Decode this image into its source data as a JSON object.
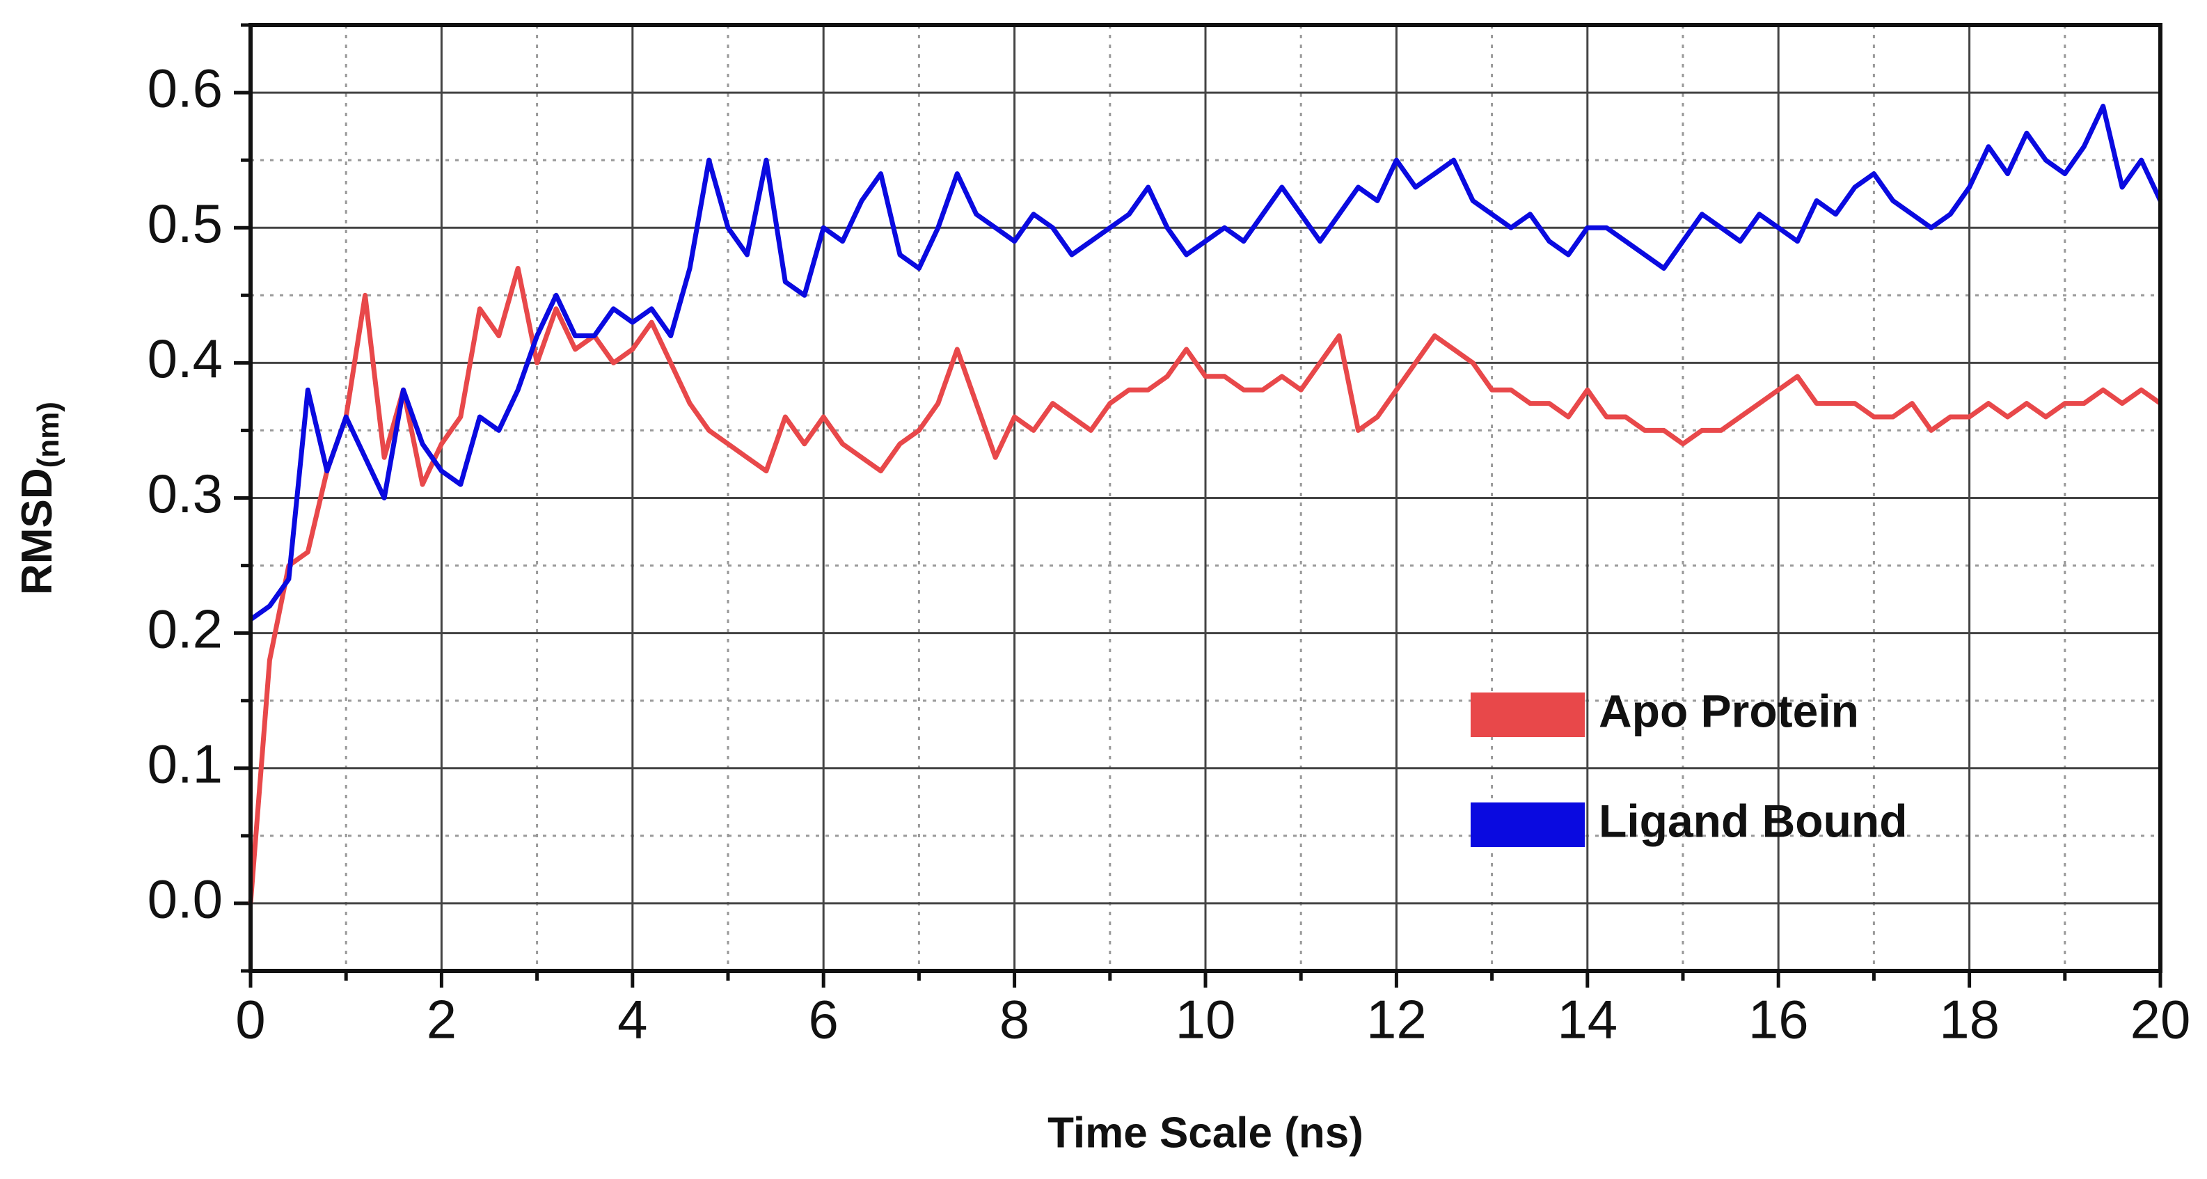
{
  "chart_data": {
    "type": "line",
    "x_label": "Time Scale (ns)",
    "y_label": "RMSD",
    "y_label_sub": "(nm)",
    "x": [
      0,
      0.2,
      0.4,
      0.6,
      0.8,
      1,
      1.2,
      1.4,
      1.6,
      1.8,
      2,
      2.2,
      2.4,
      2.6,
      2.8,
      3,
      3.2,
      3.4,
      3.6,
      3.8,
      4,
      4.2,
      4.4,
      4.6,
      4.8,
      5,
      5.2,
      5.4,
      5.6,
      5.8,
      6,
      6.2,
      6.4,
      6.6,
      6.8,
      7,
      7.2,
      7.4,
      7.6,
      7.8,
      8,
      8.2,
      8.4,
      8.6,
      8.8,
      9,
      9.2,
      9.4,
      9.6,
      9.8,
      10,
      10.2,
      10.4,
      10.6,
      10.8,
      11,
      11.2,
      11.4,
      11.6,
      11.8,
      12,
      12.2,
      12.4,
      12.6,
      12.8,
      13,
      13.2,
      13.4,
      13.6,
      13.8,
      14,
      14.2,
      14.4,
      14.6,
      14.8,
      15,
      15.2,
      15.4,
      15.6,
      15.8,
      16,
      16.2,
      16.4,
      16.6,
      16.8,
      17,
      17.2,
      17.4,
      17.6,
      17.8,
      18,
      18.2,
      18.4,
      18.6,
      18.8,
      19,
      19.2,
      19.4,
      19.6,
      19.8,
      20
    ],
    "series": [
      {
        "name": "Apo Protein",
        "color": "#e8484a",
        "values": [
          0.0,
          0.18,
          0.25,
          0.26,
          0.32,
          0.36,
          0.45,
          0.33,
          0.38,
          0.31,
          0.34,
          0.36,
          0.44,
          0.42,
          0.47,
          0.4,
          0.44,
          0.41,
          0.42,
          0.4,
          0.41,
          0.43,
          0.4,
          0.37,
          0.35,
          0.34,
          0.33,
          0.32,
          0.36,
          0.34,
          0.36,
          0.34,
          0.33,
          0.32,
          0.34,
          0.35,
          0.37,
          0.41,
          0.37,
          0.33,
          0.36,
          0.35,
          0.37,
          0.36,
          0.35,
          0.37,
          0.38,
          0.38,
          0.39,
          0.41,
          0.39,
          0.39,
          0.38,
          0.38,
          0.39,
          0.38,
          0.4,
          0.42,
          0.35,
          0.36,
          0.38,
          0.4,
          0.42,
          0.41,
          0.4,
          0.38,
          0.38,
          0.37,
          0.37,
          0.36,
          0.38,
          0.36,
          0.36,
          0.35,
          0.35,
          0.34,
          0.35,
          0.35,
          0.36,
          0.37,
          0.38,
          0.39,
          0.37,
          0.37,
          0.37,
          0.36,
          0.36,
          0.37,
          0.35,
          0.36,
          0.36,
          0.37,
          0.36,
          0.37,
          0.36,
          0.37,
          0.37,
          0.38,
          0.37,
          0.38,
          0.37
        ]
      },
      {
        "name": "Ligand Bound",
        "color": "#0a0ae0",
        "values": [
          0.21,
          0.22,
          0.24,
          0.38,
          0.32,
          0.36,
          0.33,
          0.3,
          0.38,
          0.34,
          0.32,
          0.31,
          0.36,
          0.35,
          0.38,
          0.42,
          0.45,
          0.42,
          0.42,
          0.44,
          0.43,
          0.44,
          0.42,
          0.47,
          0.55,
          0.5,
          0.48,
          0.55,
          0.46,
          0.45,
          0.5,
          0.49,
          0.52,
          0.54,
          0.48,
          0.47,
          0.5,
          0.54,
          0.51,
          0.5,
          0.49,
          0.51,
          0.5,
          0.48,
          0.49,
          0.5,
          0.51,
          0.53,
          0.5,
          0.48,
          0.49,
          0.5,
          0.49,
          0.51,
          0.53,
          0.51,
          0.49,
          0.51,
          0.53,
          0.52,
          0.55,
          0.53,
          0.54,
          0.55,
          0.52,
          0.51,
          0.5,
          0.51,
          0.49,
          0.48,
          0.5,
          0.5,
          0.49,
          0.48,
          0.47,
          0.49,
          0.51,
          0.5,
          0.49,
          0.51,
          0.5,
          0.49,
          0.52,
          0.51,
          0.53,
          0.54,
          0.52,
          0.51,
          0.5,
          0.51,
          0.53,
          0.56,
          0.54,
          0.57,
          0.55,
          0.54,
          0.56,
          0.59,
          0.53,
          0.55,
          0.52
        ]
      }
    ],
    "xlim": [
      0,
      20
    ],
    "xticks": [
      0,
      2,
      4,
      6,
      8,
      10,
      12,
      14,
      16,
      18,
      20
    ],
    "ylim": [
      -0.05,
      0.65
    ],
    "yticks": [
      {
        "value": 0,
        "label": "0.0"
      },
      0.1,
      0.2,
      0.3,
      0.4,
      0.5,
      0.6
    ],
    "grid": true,
    "minor_grid": true,
    "legend": "lower right"
  }
}
